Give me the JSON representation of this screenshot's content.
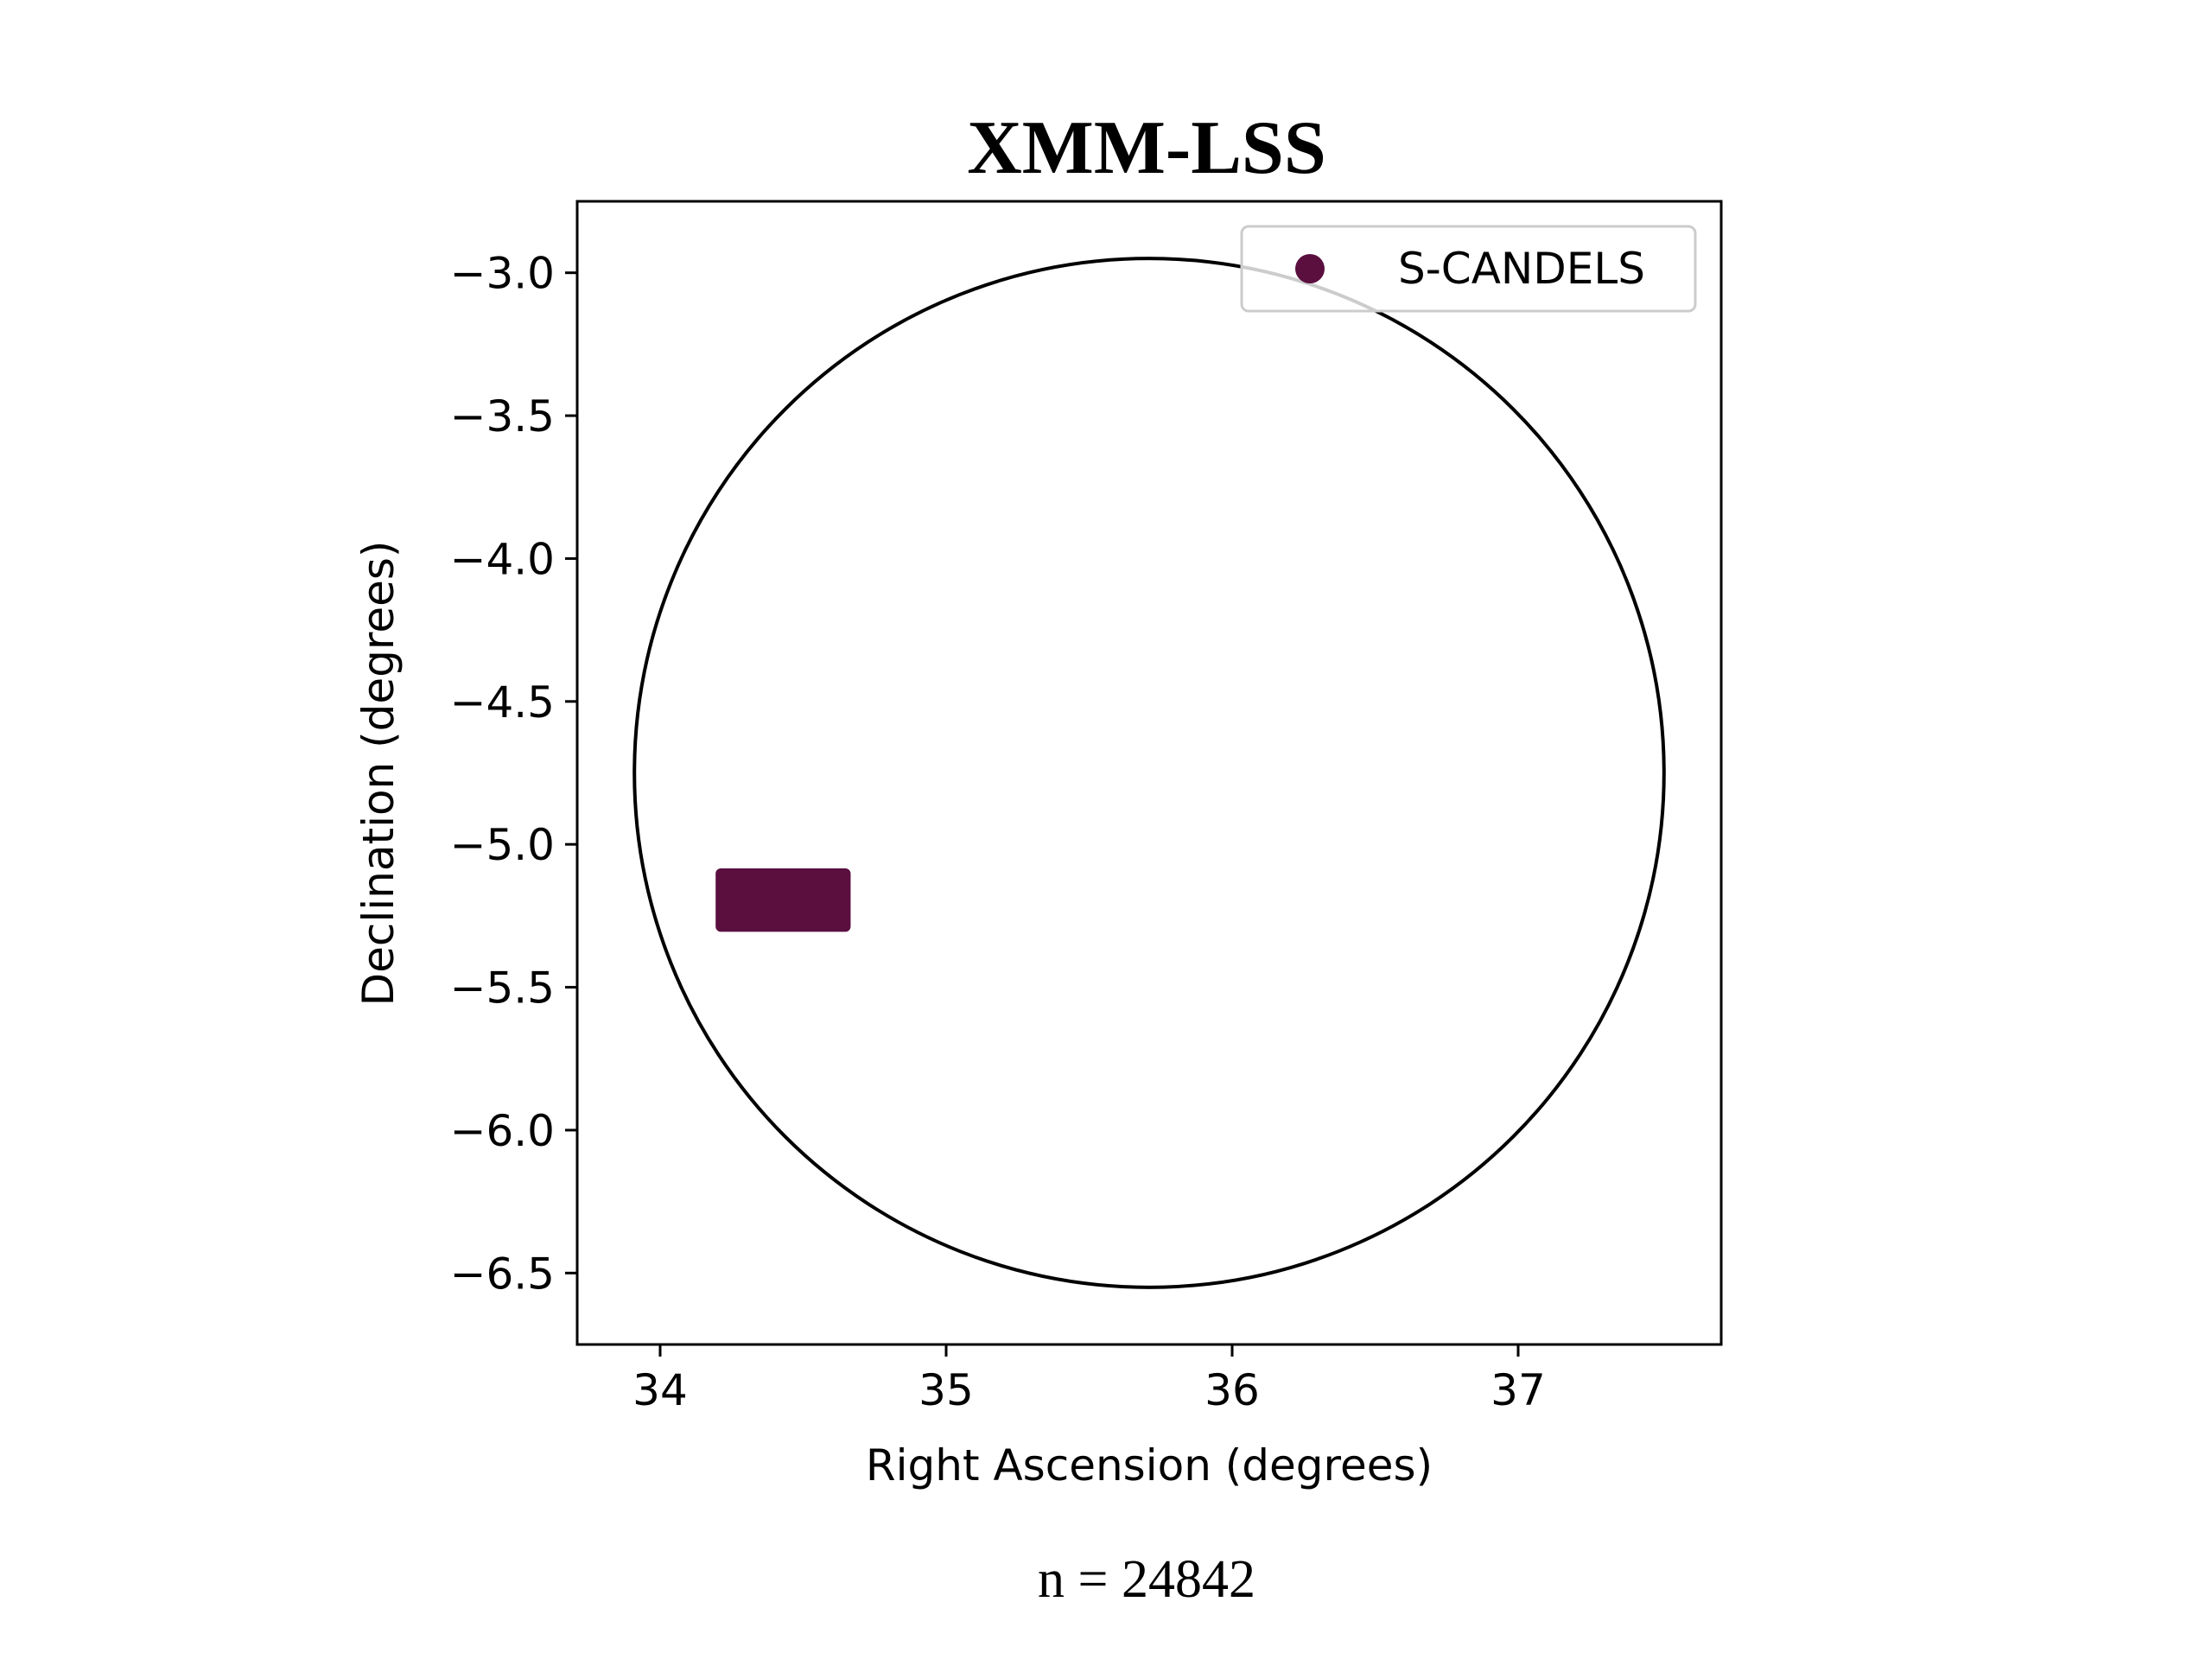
{
  "chart_data": {
    "type": "scatter",
    "title": "XMM-LSS",
    "xlabel": "Right Ascension (degrees)",
    "ylabel": "Declination (degrees)",
    "xlim": [
      33.71,
      37.71
    ],
    "ylim": [
      -6.75,
      -2.75
    ],
    "x_ticks": [
      34,
      35,
      36,
      37
    ],
    "y_ticks": [
      -3.0,
      -3.5,
      -4.0,
      -4.5,
      -5.0,
      -5.5,
      -6.0,
      -6.5
    ],
    "x_tick_labels": [
      "34",
      "35",
      "36",
      "37"
    ],
    "y_tick_labels": [
      "−3.0",
      "−3.5",
      "−4.0",
      "−4.5",
      "−5.0",
      "−5.5",
      "−6.0",
      "−6.5"
    ],
    "grid": false,
    "legend": {
      "placement": "upper right",
      "entries": [
        "S-CANDELS"
      ]
    },
    "series": [
      {
        "name": "S-CANDELS",
        "color": "#5a0f3f",
        "region": {
          "ra_min": 34.2,
          "ra_max": 34.66,
          "dec_min": -5.3,
          "dec_max": -5.09
        }
      }
    ],
    "circle": {
      "center_ra": 35.71,
      "center_dec": -4.75,
      "radius_deg": 1.8,
      "color": "#000000"
    },
    "annotation": "n = 24842"
  }
}
